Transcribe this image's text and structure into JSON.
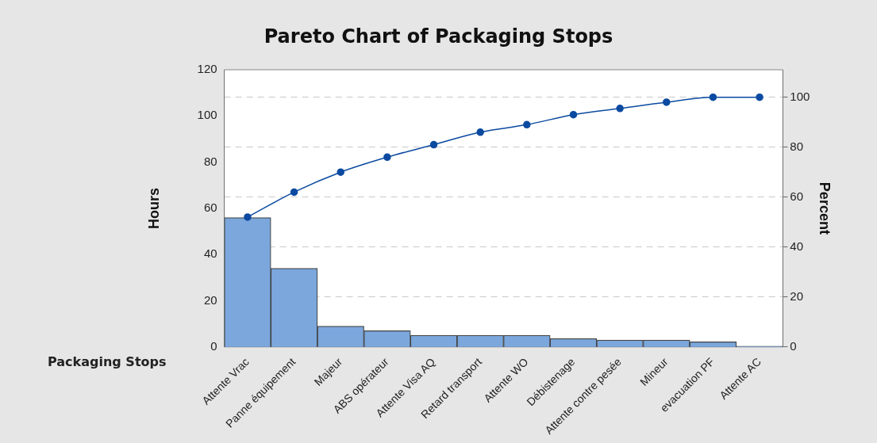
{
  "chart_data": {
    "type": "bar",
    "title": "Pareto Chart of Packaging Stops",
    "xlabel": "Packaging Stops",
    "ylabel": "Hours",
    "y2label": "Percent",
    "categories": [
      "Attente Vrac",
      "Panne équipement",
      "Majeur",
      "ABS opérateur",
      "Attente Visa AQ",
      "Retard transport",
      "Attente WO",
      "Débistenage",
      "Attente contre pesée",
      "Mineur",
      "evacuation PF",
      "Attente AC"
    ],
    "series": [
      {
        "color": "#7ba7dc",
        "values": [
          56,
          34,
          9,
          7,
          5,
          5,
          5,
          3.6,
          3,
          3,
          2.2,
          0.3
        ]
      },
      {
        "type": "line",
        "axis": "y2",
        "color": "#0b4aa0",
        "values": [
          52,
          62,
          70,
          76,
          81,
          86,
          89,
          93,
          95.5,
          98,
          100,
          100
        ]
      }
    ],
    "ylim": [
      0,
      120
    ],
    "yticks": [
      0,
      20,
      40,
      60,
      80,
      100,
      120
    ],
    "y2lim": [
      0,
      111
    ],
    "y2ticks": [
      0,
      20,
      40,
      60,
      80,
      100
    ],
    "grid": "y",
    "legend": false,
    "marker": "circle",
    "line_style": "solid"
  }
}
